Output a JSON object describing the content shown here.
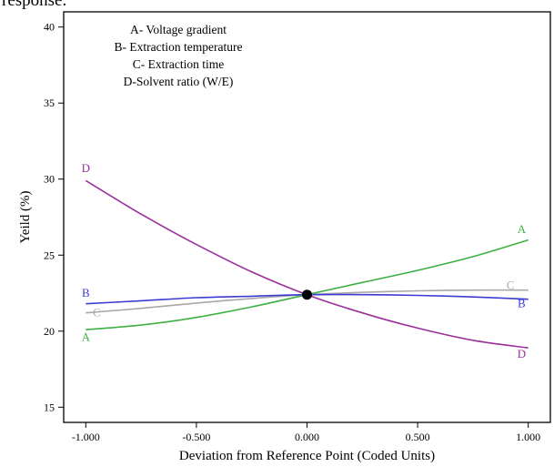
{
  "page_fragment": "response.",
  "chart_data": {
    "type": "line",
    "title": "",
    "xlabel": "Deviation from Reference Point (Coded Units)",
    "ylabel": "Yeild (%)",
    "xlim": [
      -1.1,
      1.1
    ],
    "ylim": [
      14,
      41
    ],
    "xticks": [
      "-1.000",
      "-0.500",
      "0.000",
      "0.500",
      "1.000"
    ],
    "xtick_values": [
      -1.0,
      -0.5,
      0.0,
      0.5,
      1.0
    ],
    "yticks": [
      "15",
      "20",
      "25",
      "30",
      "35",
      "40"
    ],
    "ytick_values": [
      15,
      20,
      25,
      30,
      35,
      40
    ],
    "legend": {
      "placement": "top-left",
      "entries": [
        "A- Voltage gradient",
        "B- Extraction temperature",
        "C- Extraction time",
        "D-Solvent ratio (W/E)"
      ]
    },
    "reference_point": {
      "x": 0.0,
      "y": 22.4
    },
    "x": [
      -1.0,
      -0.75,
      -0.5,
      -0.25,
      0.0,
      0.25,
      0.5,
      0.75,
      1.0
    ],
    "series": [
      {
        "name": "A",
        "color": "#3cb043",
        "values": [
          20.1,
          20.4,
          20.9,
          21.6,
          22.4,
          23.2,
          24.0,
          24.9,
          26.0
        ]
      },
      {
        "name": "B",
        "color": "#3b3bd6",
        "values": [
          21.8,
          22.0,
          22.2,
          22.3,
          22.4,
          22.4,
          22.35,
          22.25,
          22.1
        ]
      },
      {
        "name": "C",
        "color": "#a8a8a8",
        "values": [
          21.2,
          21.5,
          21.85,
          22.15,
          22.4,
          22.55,
          22.65,
          22.7,
          22.7
        ]
      },
      {
        "name": "D",
        "color": "#9b2f9b",
        "values": [
          29.9,
          27.7,
          25.7,
          23.9,
          22.4,
          21.2,
          20.2,
          19.4,
          18.9
        ]
      }
    ]
  }
}
